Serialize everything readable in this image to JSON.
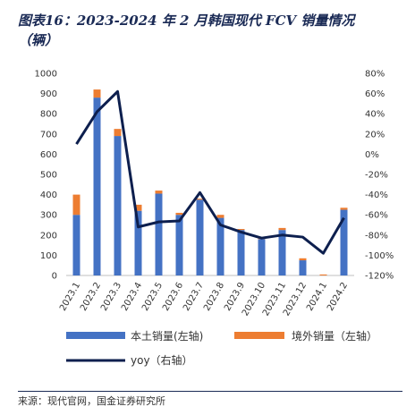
{
  "title_line1": "图表16：2023-2024 年 2 月韩国现代 FCV 销量情况",
  "title_line2": "（辆）",
  "source": "来源：现代官网，国金证券研究所",
  "chart_data": {
    "type": "bar",
    "categories": [
      "2023.1",
      "2023.2",
      "2023.3",
      "2023.4",
      "2023.5",
      "2023.6",
      "2023.7",
      "2023.8",
      "2023.9",
      "2023.10",
      "2023.11",
      "2023.12",
      "2024.1",
      "2024.2"
    ],
    "series": [
      {
        "name": "本土销量(左轴)",
        "type": "bar",
        "stack": "sales",
        "axis": "left",
        "color": "#4472c4",
        "values": [
          300,
          880,
          690,
          320,
          405,
          300,
          375,
          285,
          225,
          180,
          225,
          75,
          0,
          325
        ]
      },
      {
        "name": "境外销量（左轴）",
        "type": "bar",
        "stack": "sales",
        "axis": "left",
        "color": "#ed7d31",
        "values": [
          100,
          40,
          35,
          30,
          15,
          10,
          5,
          15,
          5,
          5,
          10,
          10,
          5,
          10
        ]
      },
      {
        "name": "yoy（右轴）",
        "type": "line",
        "axis": "right",
        "color": "#0d1f4e",
        "values": [
          10,
          42,
          62,
          -72,
          -67,
          -66,
          -38,
          -70,
          -77,
          -83,
          -80,
          -82,
          -98,
          -63
        ]
      }
    ],
    "left_axis": {
      "min": 0,
      "max": 1000,
      "step": 100,
      "ticks": [
        "0",
        "100",
        "200",
        "300",
        "400",
        "500",
        "600",
        "700",
        "800",
        "900",
        "1000"
      ]
    },
    "right_axis": {
      "min": -120,
      "max": 80,
      "step": 20,
      "ticks": [
        "-120%",
        "-100%",
        "-80%",
        "-60%",
        "-40%",
        "-20%",
        "0%",
        "20%",
        "40%",
        "60%",
        "80%"
      ]
    },
    "legend_position": "bottom",
    "grid": false
  }
}
